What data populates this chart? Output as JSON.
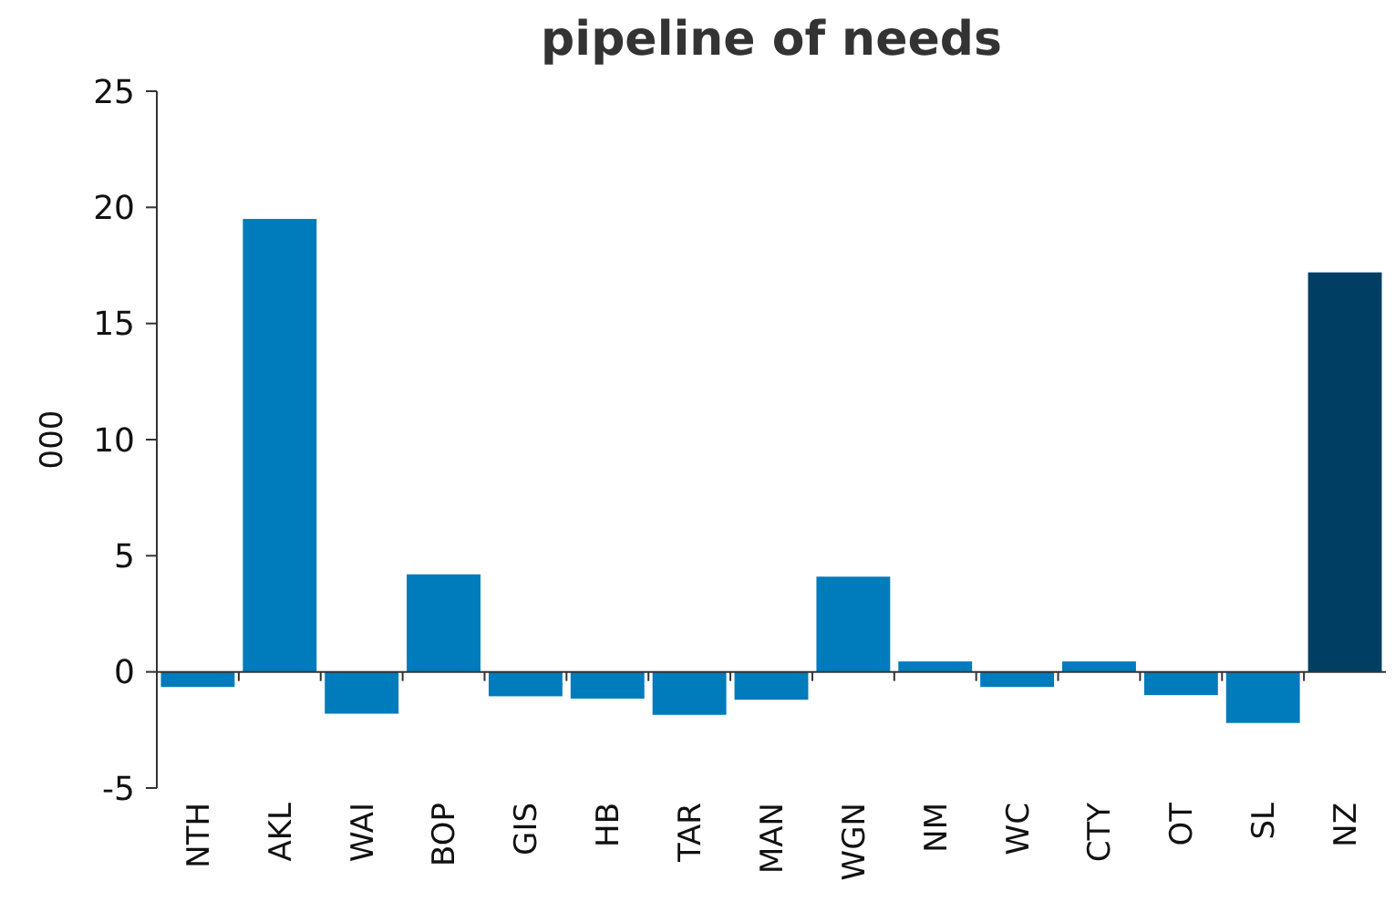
{
  "chart_data": {
    "type": "bar",
    "title": "pipeline of needs",
    "ylabel": "000",
    "categories": [
      "NTH",
      "AKL",
      "WAI",
      "BOP",
      "GIS",
      "HB",
      "TAR",
      "MAN",
      "WGN",
      "NM",
      "WC",
      "CTY",
      "OT",
      "SL",
      "NZ"
    ],
    "values": [
      -0.65,
      19.5,
      -1.8,
      4.2,
      -1.05,
      -1.15,
      -1.85,
      -1.2,
      4.1,
      0.45,
      -0.65,
      0.45,
      -1.0,
      -2.2,
      17.2
    ],
    "colors": [
      "#007bbb",
      "#007bbb",
      "#007bbb",
      "#007bbb",
      "#007bbb",
      "#007bbb",
      "#007bbb",
      "#007bbb",
      "#007bbb",
      "#007bbb",
      "#007bbb",
      "#007bbb",
      "#007bbb",
      "#007bbb",
      "#003f63"
    ],
    "ylim": [
      -5,
      25
    ],
    "yticks": [
      -5,
      0,
      5,
      10,
      15,
      20,
      25
    ]
  }
}
